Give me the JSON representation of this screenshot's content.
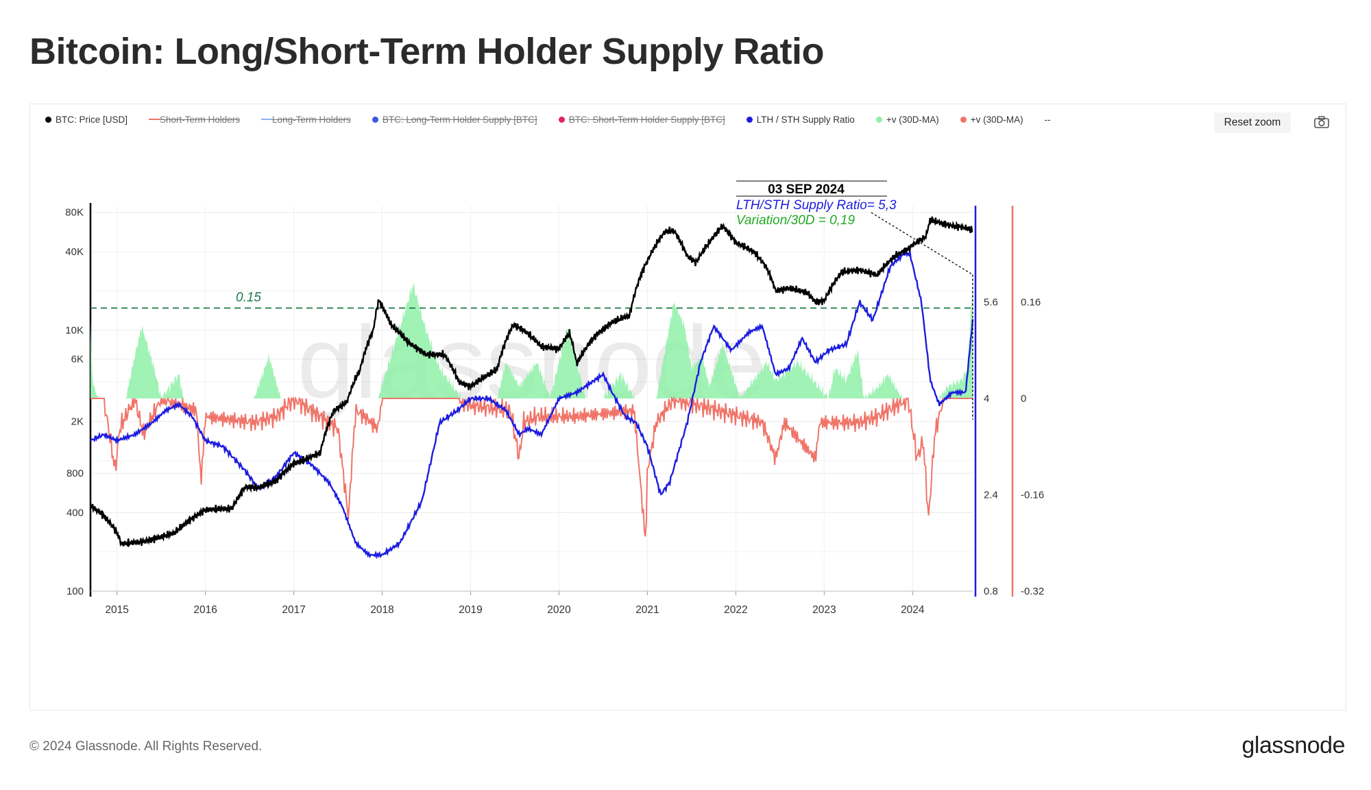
{
  "title": "Bitcoin: Long/Short-Term Holder Supply Ratio",
  "footer": {
    "copyright": "© 2024 Glassnode. All Rights Reserved.",
    "logo": "glassnode"
  },
  "toolbar": {
    "reset_zoom": "Reset zoom",
    "camera_icon": "camera-icon"
  },
  "legend": [
    {
      "label": "BTC: Price [USD]",
      "color": "#000000",
      "enabled": true,
      "style": "dot"
    },
    {
      "label": "Short-Term Holders",
      "color": "#f07468",
      "enabled": false,
      "style": "line"
    },
    {
      "label": "Long-Term Holders",
      "color": "#8ab4f0",
      "enabled": false,
      "style": "line"
    },
    {
      "label": "BTC: Long-Term Holder Supply [BTC]",
      "color": "#3b55e6",
      "enabled": false,
      "style": "dot"
    },
    {
      "label": "BTC: Short-Term Holder Supply [BTC]",
      "color": "#e0245e",
      "enabled": false,
      "style": "dot"
    },
    {
      "label": "LTH / STH Supply Ratio",
      "color": "#1c1ce0",
      "enabled": true,
      "style": "dot"
    },
    {
      "label": "+v (30D-MA)",
      "color": "#8ff0a8",
      "enabled": true,
      "style": "dot"
    },
    {
      "label": "+v (30D-MA)",
      "color": "#f07468",
      "enabled": true,
      "style": "dot"
    },
    {
      "label": "--",
      "color": "#333333",
      "enabled": true,
      "style": "text"
    }
  ],
  "chart_data": {
    "type": "line",
    "watermark": "glassnode",
    "x_axis": {
      "ticks": [
        "2015",
        "2016",
        "2017",
        "2018",
        "2019",
        "2020",
        "2021",
        "2022",
        "2023",
        "2024"
      ],
      "range": [
        2014.7,
        2024.68
      ]
    },
    "y_axis_price": {
      "scale": "log",
      "range": [
        100,
        90000
      ],
      "ticks": [
        100,
        400,
        800,
        2000,
        6000,
        10000,
        40000,
        80000
      ],
      "tick_labels": [
        "100",
        "400",
        "800",
        "2K",
        "6K",
        "10K",
        "40K",
        "80K"
      ]
    },
    "y_axis_ratio": {
      "range": [
        0.8,
        7.2
      ],
      "ticks": [
        0.8,
        2.4,
        4,
        5.6
      ],
      "tick_labels": [
        "0.8",
        "2.4",
        "4",
        "5.6"
      ],
      "color": "#1c1ce0"
    },
    "y_axis_variation": {
      "range": [
        -0.32,
        0.32
      ],
      "ticks": [
        -0.32,
        -0.16,
        0,
        0.16
      ],
      "tick_labels": [
        "-0.32",
        "-0.16",
        "0",
        "0.16"
      ],
      "color": "#f07468"
    },
    "threshold": {
      "value": 0.15,
      "label": "0.15",
      "color": "#1f7a4a"
    },
    "annotation": {
      "date": "03 SEP 2024",
      "ratio_text": "LTH/STH Supply Ratio= 5,3",
      "variation_text": "Variation/30D = 0,19"
    },
    "series": [
      {
        "name": "BTC: Price [USD]",
        "color": "#000000",
        "x": [
          2014.7,
          2014.85,
          2015.0,
          2015.05,
          2015.3,
          2015.5,
          2015.65,
          2015.9,
          2016.0,
          2016.3,
          2016.45,
          2016.6,
          2016.8,
          2017.0,
          2017.1,
          2017.3,
          2017.45,
          2017.6,
          2017.75,
          2017.9,
          2017.96,
          2018.1,
          2018.3,
          2018.5,
          2018.7,
          2018.87,
          2019.0,
          2019.3,
          2019.48,
          2019.6,
          2019.8,
          2020.0,
          2020.12,
          2020.2,
          2020.4,
          2020.6,
          2020.8,
          2020.95,
          2021.0,
          2021.2,
          2021.3,
          2021.45,
          2021.55,
          2021.7,
          2021.85,
          2022.0,
          2022.2,
          2022.35,
          2022.45,
          2022.6,
          2022.8,
          2022.9,
          2023.0,
          2023.2,
          2023.4,
          2023.6,
          2023.8,
          2023.95,
          2024.0,
          2024.15,
          2024.2,
          2024.4,
          2024.6,
          2024.68
        ],
        "values": [
          450,
          380,
          280,
          230,
          240,
          260,
          280,
          380,
          420,
          430,
          630,
          620,
          700,
          950,
          1000,
          1150,
          2400,
          2800,
          5000,
          10000,
          17000,
          11000,
          8000,
          6500,
          6500,
          4000,
          3700,
          5000,
          11000,
          10000,
          7500,
          7200,
          9500,
          5500,
          8900,
          11500,
          13000,
          29000,
          34000,
          57000,
          58000,
          37000,
          33000,
          47000,
          63000,
          47000,
          40000,
          30000,
          20000,
          21000,
          19500,
          16500,
          16800,
          28000,
          29000,
          26500,
          37000,
          42000,
          45000,
          52000,
          70000,
          64000,
          61000,
          58000
        ]
      },
      {
        "name": "LTH / STH Supply Ratio",
        "color": "#1c1ce0",
        "x": [
          2014.7,
          2014.85,
          2015.0,
          2015.2,
          2015.4,
          2015.55,
          2015.7,
          2015.85,
          2016.0,
          2016.2,
          2016.45,
          2016.6,
          2016.8,
          2017.0,
          2017.2,
          2017.4,
          2017.55,
          2017.7,
          2017.85,
          2018.0,
          2018.2,
          2018.45,
          2018.65,
          2018.85,
          2019.0,
          2019.2,
          2019.4,
          2019.55,
          2019.65,
          2019.8,
          2020.0,
          2020.2,
          2020.5,
          2020.6,
          2020.75,
          2020.87,
          2021.0,
          2021.15,
          2021.25,
          2021.45,
          2021.6,
          2021.75,
          2021.95,
          2022.15,
          2022.3,
          2022.45,
          2022.6,
          2022.75,
          2022.9,
          2023.05,
          2023.25,
          2023.4,
          2023.55,
          2023.75,
          2023.9,
          2023.97,
          2024.1,
          2024.2,
          2024.3,
          2024.45,
          2024.6,
          2024.68
        ],
        "values": [
          3.3,
          3.4,
          3.3,
          3.4,
          3.6,
          3.8,
          3.9,
          3.7,
          3.3,
          3.2,
          2.8,
          2.5,
          2.7,
          3.1,
          2.9,
          2.6,
          2.2,
          1.6,
          1.4,
          1.4,
          1.6,
          2.3,
          3.6,
          3.8,
          4.0,
          4.0,
          3.8,
          3.4,
          3.5,
          3.4,
          4.0,
          4.1,
          4.4,
          4.1,
          3.7,
          3.6,
          3.2,
          2.4,
          2.6,
          3.6,
          4.6,
          5.2,
          4.8,
          5.1,
          5.2,
          4.4,
          4.5,
          5.0,
          4.6,
          4.8,
          4.9,
          5.6,
          5.3,
          6.2,
          6.4,
          6.4,
          5.6,
          4.3,
          3.9,
          4.1,
          4.1,
          5.3
        ]
      },
      {
        "name": "+v (30D-MA)",
        "color": "#8ff0a8",
        "x": [
          2014.7,
          2014.72,
          2014.78,
          2015.1,
          2015.2,
          2015.28,
          2015.42,
          2015.5,
          2015.7,
          2015.75,
          2016.55,
          2016.72,
          2016.85,
          2017.1,
          2017.3,
          2017.35,
          2017.95,
          2018.1,
          2018.35,
          2018.48,
          2018.65,
          2018.9,
          2019.3,
          2019.4,
          2019.55,
          2019.75,
          2019.9,
          2020.1,
          2020.3,
          2020.5,
          2020.7,
          2020.85,
          2021.1,
          2021.2,
          2021.3,
          2021.42,
          2021.5,
          2021.62,
          2021.7,
          2021.85,
          2022.05,
          2022.35,
          2022.45,
          2022.7,
          2023.05,
          2023.12,
          2023.25,
          2023.38,
          2023.45,
          2023.62,
          2023.72,
          2023.88,
          2023.98,
          2024.1,
          2024.3,
          2024.4,
          2024.55,
          2024.62,
          2024.68
        ],
        "values": [
          0.13,
          0.03,
          0.0,
          0.0,
          0.07,
          0.12,
          0.05,
          0.0,
          0.04,
          0.0,
          0.0,
          0.07,
          0.0,
          0.0,
          0.0,
          0.0,
          0.0,
          0.07,
          0.19,
          0.12,
          0.05,
          0.0,
          0.0,
          0.06,
          0.02,
          0.06,
          0.0,
          0.12,
          0.0,
          0.0,
          0.04,
          0.0,
          0.0,
          0.08,
          0.16,
          0.12,
          0.05,
          0.07,
          0.02,
          0.09,
          0.0,
          0.06,
          0.03,
          0.06,
          0.0,
          0.05,
          0.03,
          0.08,
          0.0,
          0.02,
          0.04,
          0.0,
          0.0,
          0.0,
          0.0,
          0.02,
          0.03,
          0.05,
          0.19
        ]
      },
      {
        "name": "+v (30D-MA)",
        "color": "#f07468",
        "x": [
          2014.7,
          2014.85,
          2014.98,
          2015.03,
          2015.2,
          2015.3,
          2015.5,
          2015.9,
          2015.95,
          2016.0,
          2016.55,
          2016.8,
          2017.0,
          2017.5,
          2017.62,
          2017.65,
          2017.7,
          2017.8,
          2017.95,
          2018.0,
          2018.85,
          2018.95,
          2019.45,
          2019.55,
          2019.6,
          2019.75,
          2020.2,
          2020.85,
          2020.98,
          2021.0,
          2021.1,
          2021.3,
          2022.3,
          2022.45,
          2022.55,
          2022.9,
          2022.95,
          2023.4,
          2023.6,
          2023.95,
          2024.05,
          2024.12,
          2024.18,
          2024.25,
          2024.35,
          2024.4
        ],
        "values": [
          0.0,
          0.0,
          -0.12,
          -0.05,
          0.0,
          -0.06,
          0.0,
          -0.02,
          -0.14,
          -0.03,
          -0.04,
          -0.03,
          0.0,
          -0.05,
          -0.2,
          -0.12,
          -0.02,
          -0.03,
          -0.05,
          0.0,
          0.0,
          -0.01,
          -0.02,
          -0.1,
          -0.04,
          -0.03,
          -0.03,
          -0.02,
          -0.24,
          -0.12,
          -0.04,
          0.0,
          -0.04,
          -0.1,
          -0.04,
          -0.1,
          -0.04,
          -0.04,
          -0.03,
          0.0,
          -0.1,
          -0.07,
          -0.2,
          -0.06,
          0.0,
          0.0
        ]
      }
    ]
  }
}
